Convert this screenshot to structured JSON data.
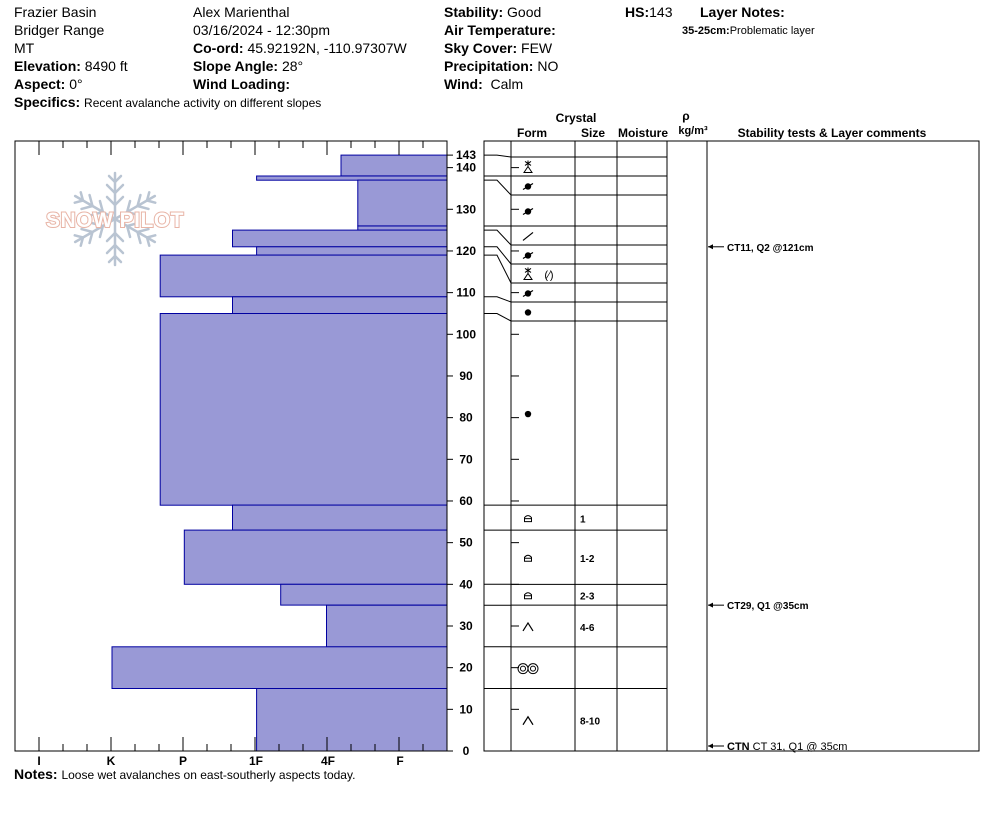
{
  "header": {
    "location": "Frazier Basin",
    "range": "Bridger Range",
    "state": "MT",
    "elevation_label": "Elevation:",
    "elevation_value": "8490 ft",
    "aspect_label": "Aspect:",
    "aspect_value": "0°",
    "specifics_label": "Specifics:",
    "specifics_value": "Recent avalanche activity on different slopes",
    "observer": "Alex Marienthal",
    "datetime": "03/16/2024 - 12:30pm",
    "coord_label": "Co-ord:",
    "coord_value": "45.92192N, -110.97307W",
    "slope_label": "Slope Angle:",
    "slope_value": "28°",
    "wind_loading_label": "Wind Loading:",
    "wind_loading_value": "",
    "stability_label": "Stability:",
    "stability_value": "Good",
    "air_temp_label": "Air Temperature:",
    "air_temp_value": "",
    "sky_label": "Sky Cover:",
    "sky_value": "FEW",
    "precip_label": "Precipitation:",
    "precip_value": "NO",
    "wind_label": "Wind:",
    "wind_value": "Calm",
    "hs_label": "HS:",
    "hs_value": "143",
    "layer_notes_label": "Layer Notes:",
    "layer_note_range": "35-25cm:",
    "layer_note_text": "Problematic layer"
  },
  "logo": {
    "text": "SNOW PILOT"
  },
  "notes": {
    "label": "Notes:",
    "value": "Loose wet avalanches on east-southerly aspects today."
  },
  "table": {
    "crystal_label": "Crystal",
    "form_label": "Form",
    "size_label": "Size",
    "moisture_label": "Moisture",
    "rho_label": "ρ",
    "density_unit": "kg/m³",
    "tests_label": "Stability tests & Layer comments"
  },
  "chart_data": {
    "type": "bar",
    "orientation": "horizontal",
    "description_axis": "depth_cm",
    "ylim": [
      0,
      150
    ],
    "hardness_ticks": [
      "I",
      "K",
      "P",
      "1F",
      "4F",
      "F"
    ],
    "depth_ticks": [
      0,
      10,
      20,
      30,
      40,
      50,
      60,
      70,
      80,
      90,
      100,
      110,
      120,
      130,
      140
    ],
    "hs_tick": 143,
    "colors": {
      "bar_fill": "#9999d6",
      "bar_stroke": "#0000a0"
    },
    "layers": [
      {
        "top": 143,
        "bottom": 138,
        "hardness": 4.4,
        "form": "precip-decomp",
        "size": ""
      },
      {
        "top": 138,
        "bottom": 137,
        "hardness": 7.9,
        "form": "rounded",
        "size": ""
      },
      {
        "top": 137,
        "bottom": 126,
        "hardness": 3.7,
        "form": "rounded",
        "size": ""
      },
      {
        "top": 126,
        "bottom": 125,
        "hardness": 3.7,
        "form": "facet-line",
        "size": ""
      },
      {
        "top": 125,
        "bottom": 121,
        "hardness": 8.9,
        "form": "rounded",
        "size": ""
      },
      {
        "top": 121,
        "bottom": 119,
        "hardness": 7.9,
        "form": "precip-decomp",
        "size": ""
      },
      {
        "top": 119,
        "bottom": 109,
        "hardness": 11.9,
        "form": "rounded",
        "size": ""
      },
      {
        "top": 109,
        "bottom": 105,
        "hardness": 8.9,
        "form": "dot",
        "size": ""
      },
      {
        "top": 105,
        "bottom": 59,
        "hardness": 11.9,
        "form": "dot",
        "size": ""
      },
      {
        "top": 59,
        "bottom": 53,
        "hardness": 8.9,
        "form": "cup",
        "size": "1"
      },
      {
        "top": 53,
        "bottom": 40,
        "hardness": 10.9,
        "form": "cup",
        "size": "1-2"
      },
      {
        "top": 40,
        "bottom": 35,
        "hardness": 6.9,
        "form": "cup",
        "size": "2-3"
      },
      {
        "top": 35,
        "bottom": 25,
        "hardness": 5.0,
        "form": "depth-hoar",
        "size": "4-6"
      },
      {
        "top": 25,
        "bottom": 15,
        "hardness": 13.9,
        "form": "melt-clusters",
        "size": ""
      },
      {
        "top": 15,
        "bottom": 0,
        "hardness": 7.9,
        "form": "depth-hoar",
        "size": "8-10"
      }
    ],
    "tests": [
      {
        "depth": 121,
        "text": "CT11, Q2 @121cm"
      },
      {
        "depth": 35,
        "text": "CT29, Q1 @35cm"
      },
      {
        "depth": 0,
        "prefix": "CTN",
        "text": "CT 31, Q1 @ 35cm"
      }
    ]
  }
}
